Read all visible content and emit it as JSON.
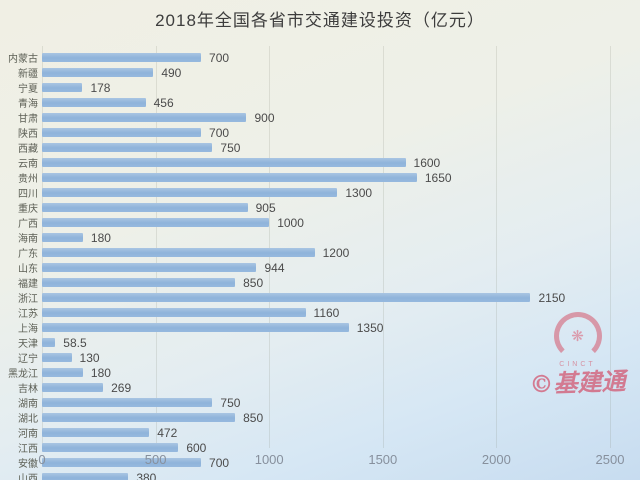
{
  "title": "2018年全国各省市交通建设投资（亿元）",
  "watermark": {
    "logo_text": "CINCT",
    "brand": "©基建通",
    "flower_icon": "❋",
    "color": "#d67d8f"
  },
  "colors": {
    "bar": "#92b6db",
    "title_text": "#3d3d3d",
    "category_text": "#5c5f55",
    "value_text": "#4b4b4b",
    "tick_text": "#87909d",
    "background_top": "#f0efe4",
    "background_bottom": "#c7dcf0"
  },
  "chart_data": {
    "type": "bar",
    "orientation": "horizontal",
    "title": "2018年全国各省市交通建设投资（亿元）",
    "categories": [
      "内蒙古",
      "新疆",
      "宁夏",
      "青海",
      "甘肃",
      "陕西",
      "西藏",
      "云南",
      "贵州",
      "四川",
      "重庆",
      "广西",
      "海南",
      "广东",
      "山东",
      "福建",
      "浙江",
      "江苏",
      "上海",
      "天津",
      "辽宁",
      "黑龙江",
      "吉林",
      "湖南",
      "湖北",
      "河南",
      "江西",
      "安徽",
      "山西"
    ],
    "values": [
      700,
      490,
      178,
      456,
      900,
      700,
      750,
      1600,
      1650,
      1300,
      905,
      1000,
      180,
      1200,
      944,
      850,
      2150,
      1160,
      1350,
      58.5,
      130,
      180,
      269,
      750,
      850,
      472,
      600,
      700,
      380
    ],
    "x_ticks": [
      0,
      500,
      1000,
      1500,
      2000,
      2500
    ],
    "xlim": [
      0,
      2500
    ],
    "xlabel": "",
    "ylabel": "",
    "grid": true,
    "value_labels": true,
    "legend": false
  }
}
